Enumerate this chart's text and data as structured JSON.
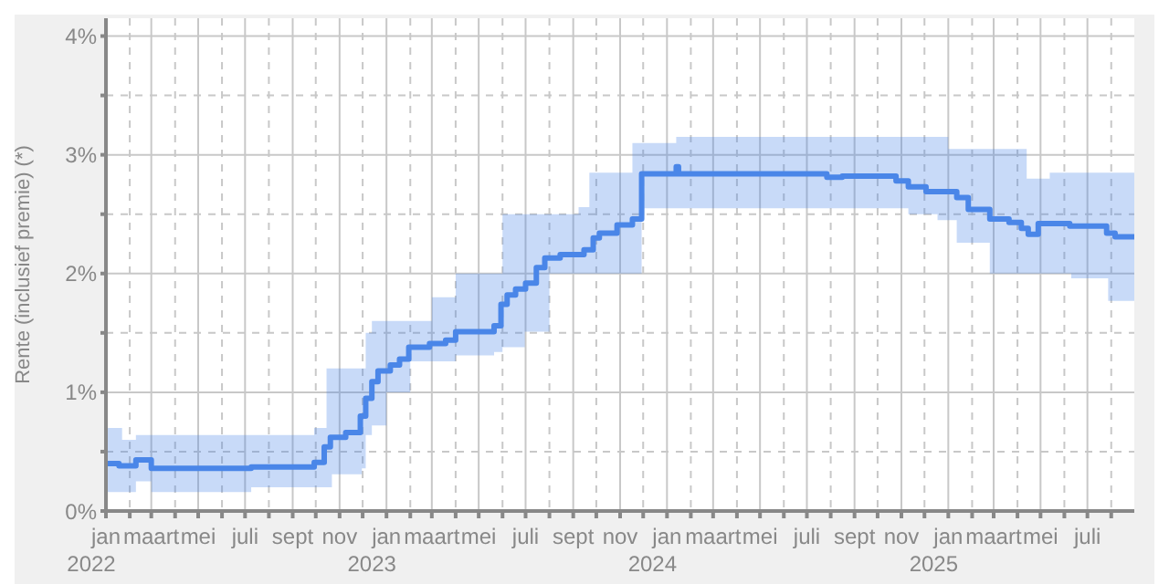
{
  "chart_data": {
    "type": "step",
    "ylabel": "Rente (inclusief premie) (*)",
    "xlim": [
      "2022-01-01",
      "2025-08-31"
    ],
    "ylim": [
      0,
      4.15
    ],
    "yticks": [
      {
        "value": 0,
        "label": "0%"
      },
      {
        "value": 0.5,
        "label": null
      },
      {
        "value": 1,
        "label": "1%"
      },
      {
        "value": 1.5,
        "label": null
      },
      {
        "value": 2,
        "label": "2%"
      },
      {
        "value": 2.5,
        "label": null
      },
      {
        "value": 3,
        "label": "3%"
      },
      {
        "value": 3.5,
        "label": null
      },
      {
        "value": 4,
        "label": "4%"
      }
    ],
    "xticks": [
      {
        "value": "2022-01-01",
        "label": "jan\n2022"
      },
      {
        "value": "2022-02-01",
        "label": null
      },
      {
        "value": "2022-03-01",
        "label": "maart"
      },
      {
        "value": "2022-04-01",
        "label": null
      },
      {
        "value": "2022-05-01",
        "label": "mei"
      },
      {
        "value": "2022-06-01",
        "label": null
      },
      {
        "value": "2022-07-01",
        "label": "juli"
      },
      {
        "value": "2022-08-01",
        "label": null
      },
      {
        "value": "2022-09-01",
        "label": "sept"
      },
      {
        "value": "2022-10-01",
        "label": null
      },
      {
        "value": "2022-11-01",
        "label": "nov"
      },
      {
        "value": "2022-12-01",
        "label": null
      },
      {
        "value": "2023-01-01",
        "label": "jan\n2023"
      },
      {
        "value": "2023-02-01",
        "label": null
      },
      {
        "value": "2023-03-01",
        "label": "maart"
      },
      {
        "value": "2023-04-01",
        "label": null
      },
      {
        "value": "2023-05-01",
        "label": "mei"
      },
      {
        "value": "2023-06-01",
        "label": null
      },
      {
        "value": "2023-07-01",
        "label": "juli"
      },
      {
        "value": "2023-08-01",
        "label": null
      },
      {
        "value": "2023-09-01",
        "label": "sept"
      },
      {
        "value": "2023-10-01",
        "label": null
      },
      {
        "value": "2023-11-01",
        "label": "nov"
      },
      {
        "value": "2023-12-01",
        "label": null
      },
      {
        "value": "2024-01-01",
        "label": "jan\n2024"
      },
      {
        "value": "2024-02-01",
        "label": null
      },
      {
        "value": "2024-03-01",
        "label": "maart"
      },
      {
        "value": "2024-04-01",
        "label": null
      },
      {
        "value": "2024-05-01",
        "label": "mei"
      },
      {
        "value": "2024-06-01",
        "label": null
      },
      {
        "value": "2024-07-01",
        "label": "juli"
      },
      {
        "value": "2024-08-01",
        "label": null
      },
      {
        "value": "2024-09-01",
        "label": "sept"
      },
      {
        "value": "2024-10-01",
        "label": null
      },
      {
        "value": "2024-11-01",
        "label": "nov"
      },
      {
        "value": "2024-12-01",
        "label": null
      },
      {
        "value": "2025-01-01",
        "label": "jan\n2025"
      },
      {
        "value": "2025-02-01",
        "label": null
      },
      {
        "value": "2025-03-01",
        "label": "maart"
      },
      {
        "value": "2025-04-01",
        "label": null
      },
      {
        "value": "2025-05-01",
        "label": "mei"
      },
      {
        "value": "2025-06-01",
        "label": null
      },
      {
        "value": "2025-07-01",
        "label": "juli"
      },
      {
        "value": "2025-08-01",
        "label": null
      }
    ],
    "grid": true,
    "legend": false,
    "series": [
      {
        "type": "step",
        "color": "#4a86e8",
        "x": [
          "2022-01-01",
          "2022-01-18",
          "2022-01-22",
          "2022-02-09",
          "2022-03-01",
          "2022-07-09",
          "2022-09-29",
          "2022-10-12",
          "2022-10-15",
          "2022-10-20",
          "2022-10-22",
          "2022-11-09",
          "2022-11-28",
          "2022-11-30",
          "2022-12-05",
          "2022-12-13",
          "2022-12-21",
          "2023-01-01",
          "2023-01-06",
          "2023-01-18",
          "2023-01-30",
          "2023-02-01",
          "2023-02-26",
          "2023-03-01",
          "2023-03-19",
          "2023-04-01",
          "2023-05-21",
          "2023-05-30",
          "2023-06-01",
          "2023-06-07",
          "2023-06-18",
          "2023-06-30",
          "2023-07-01",
          "2023-07-15",
          "2023-07-26",
          "2023-08-01",
          "2023-08-15",
          "2023-09-08",
          "2023-09-15",
          "2023-09-22",
          "2023-09-27",
          "2023-10-05",
          "2023-10-28",
          "2023-11-17",
          "2023-11-29",
          "2024-01-13",
          "2024-01-16",
          "2024-07-27",
          "2024-08-16",
          "2024-10-25",
          "2024-11-10",
          "2024-12-03",
          "2024-12-18",
          "2025-01-01",
          "2025-01-12",
          "2025-01-27",
          "2025-02-24",
          "2025-03-21",
          "2025-04-06",
          "2025-04-13",
          "2025-04-15",
          "2025-04-28",
          "2025-05-13",
          "2025-06-08",
          "2025-06-10",
          "2025-07-26",
          "2025-07-28",
          "2025-08-06",
          "2025-08-31"
        ],
        "values": [
          0.4,
          0.38,
          0.38,
          0.43,
          0.36,
          0.37,
          0.41,
          0.54,
          0.54,
          0.62,
          0.62,
          0.66,
          0.8,
          0.8,
          0.95,
          1.09,
          1.18,
          1.18,
          1.23,
          1.28,
          1.38,
          1.38,
          1.41,
          1.41,
          1.44,
          1.51,
          1.56,
          1.74,
          1.74,
          1.82,
          1.87,
          1.87,
          1.92,
          2.05,
          2.13,
          2.13,
          2.16,
          2.16,
          2.2,
          2.2,
          2.3,
          2.34,
          2.41,
          2.46,
          2.84,
          2.9,
          2.84,
          2.81,
          2.82,
          2.78,
          2.73,
          2.69,
          2.69,
          2.69,
          2.64,
          2.54,
          2.46,
          2.43,
          2.38,
          2.38,
          2.33,
          2.42,
          2.42,
          2.4,
          2.4,
          2.34,
          2.34,
          2.31,
          2.31
        ],
        "lower": [
          0.16,
          0.16,
          0.16,
          0.25,
          0.16,
          0.2,
          0.2,
          0.2,
          0.2,
          0.2,
          0.31,
          0.31,
          0.31,
          0.36,
          0.64,
          0.72,
          0.72,
          1.0,
          1.0,
          1.0,
          1.0,
          1.26,
          1.26,
          1.26,
          1.26,
          1.31,
          1.34,
          1.34,
          1.38,
          1.38,
          1.38,
          1.51,
          1.51,
          1.51,
          1.51,
          2.0,
          2.0,
          2.0,
          2.0,
          2.0,
          2.0,
          2.0,
          2.0,
          2.0,
          2.55,
          2.55,
          2.55,
          2.55,
          2.55,
          2.55,
          2.5,
          2.5,
          2.45,
          2.45,
          2.26,
          2.26,
          2.0,
          2.0,
          2.0,
          2.0,
          2.0,
          2.0,
          2.0,
          2.0,
          1.96,
          1.96,
          1.77,
          1.77,
          1.77
        ],
        "upper": [
          0.7,
          0.7,
          0.6,
          0.64,
          0.64,
          0.64,
          0.7,
          0.7,
          1.2,
          1.2,
          1.2,
          1.2,
          1.2,
          1.2,
          1.5,
          1.6,
          1.6,
          1.6,
          1.6,
          1.6,
          1.6,
          1.6,
          1.6,
          1.8,
          1.8,
          2.0,
          2.0,
          2.0,
          2.5,
          2.5,
          2.5,
          2.5,
          2.5,
          2.5,
          2.5,
          2.5,
          2.5,
          2.56,
          2.56,
          2.85,
          2.85,
          2.85,
          2.85,
          3.1,
          3.1,
          3.15,
          3.15,
          3.15,
          3.15,
          3.15,
          3.15,
          3.15,
          3.15,
          3.05,
          3.05,
          3.05,
          3.05,
          3.05,
          3.05,
          2.8,
          2.8,
          2.8,
          2.85,
          2.85,
          2.85,
          2.85,
          2.85,
          2.85,
          2.85
        ]
      }
    ]
  }
}
